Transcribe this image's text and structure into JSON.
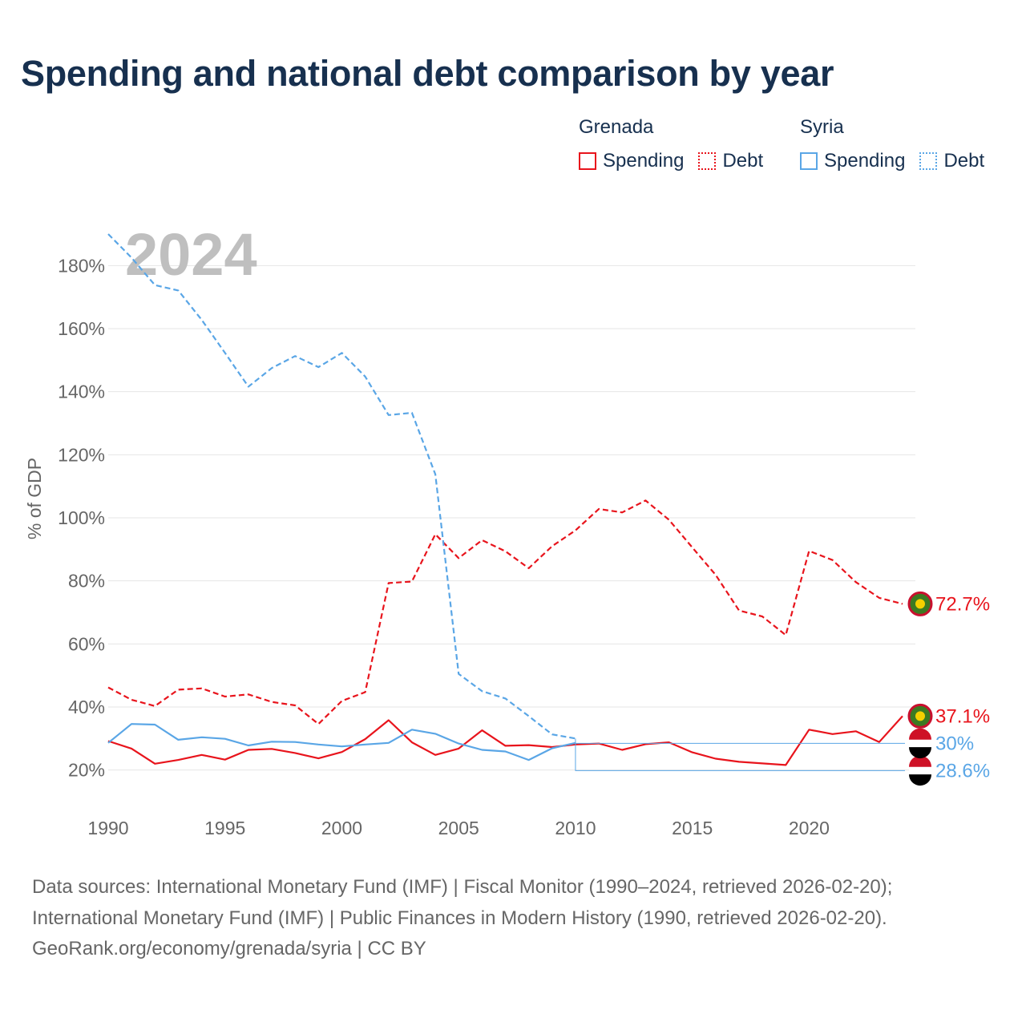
{
  "title": "Spending and national debt comparison by year",
  "legend": {
    "groups": [
      {
        "country": "Grenada",
        "spending_label": "Spending",
        "debt_label": "Debt",
        "color": "#e8141c"
      },
      {
        "country": "Syria",
        "spending_label": "Spending",
        "debt_label": "Debt",
        "color": "#5aa6e6"
      }
    ]
  },
  "colors": {
    "grenada": "#e8141c",
    "syria": "#5aa6e6",
    "grid": "#e6e6e6",
    "axis_text": "#666666",
    "year_watermark": "#bfbfbf"
  },
  "chart_data": {
    "type": "line",
    "year_watermark": "2024",
    "ylabel": "% of GDP",
    "xlabel": "",
    "xlim": [
      1990,
      2024
    ],
    "ylim": [
      10,
      190
    ],
    "x_ticks": [
      1990,
      1995,
      2000,
      2005,
      2010,
      2015,
      2020
    ],
    "y_ticks": [
      20,
      40,
      60,
      80,
      100,
      120,
      140,
      160,
      180
    ],
    "y_tick_labels": [
      "20%",
      "40%",
      "60%",
      "80%",
      "100%",
      "120%",
      "140%",
      "160%",
      "180%"
    ],
    "grid": true,
    "series": [
      {
        "name": "Grenada Spending",
        "country": "Grenada",
        "kind": "spending",
        "style": "solid",
        "color": "#e8141c",
        "x": [
          1990,
          1991,
          1992,
          1993,
          1994,
          1995,
          1996,
          1997,
          1998,
          1999,
          2000,
          2001,
          2002,
          2003,
          2004,
          2005,
          2006,
          2007,
          2008,
          2009,
          2010,
          2011,
          2012,
          2013,
          2014,
          2015,
          2016,
          2017,
          2018,
          2019,
          2020,
          2021,
          2022,
          2023,
          2024
        ],
        "values": [
          29.2,
          26.8,
          22.0,
          23.2,
          24.8,
          23.3,
          26.4,
          26.7,
          25.4,
          23.7,
          25.7,
          29.8,
          35.8,
          28.8,
          24.8,
          26.8,
          32.6,
          27.7,
          27.9,
          27.3,
          28.1,
          28.4,
          26.4,
          28.2,
          28.8,
          25.6,
          23.6,
          22.6,
          22.1,
          21.6,
          32.8,
          31.4,
          32.3,
          28.9,
          37.1
        ],
        "end_label": "37.1%"
      },
      {
        "name": "Grenada Debt",
        "country": "Grenada",
        "kind": "debt",
        "style": "dashed",
        "color": "#e8141c",
        "x": [
          1990,
          1991,
          1992,
          1993,
          1994,
          1995,
          1996,
          1997,
          1998,
          1999,
          2000,
          2001,
          2002,
          2003,
          2004,
          2005,
          2006,
          2007,
          2008,
          2009,
          2010,
          2011,
          2012,
          2013,
          2014,
          2015,
          2016,
          2017,
          2018,
          2019,
          2020,
          2021,
          2022,
          2023,
          2024
        ],
        "values": [
          46.2,
          42.3,
          40.3,
          45.5,
          45.9,
          43.3,
          44.0,
          41.6,
          40.5,
          34.6,
          41.9,
          44.7,
          79.3,
          79.8,
          94.8,
          87.2,
          92.9,
          89.4,
          84.0,
          91.0,
          96.0,
          102.8,
          101.7,
          105.5,
          99.4,
          90.6,
          81.9,
          70.6,
          68.7,
          62.8,
          89.5,
          86.6,
          79.6,
          74.6,
          72.7
        ],
        "end_label": "72.7%"
      },
      {
        "name": "Syria Spending",
        "country": "Syria",
        "kind": "spending",
        "style": "solid",
        "color": "#5aa6e6",
        "x": [
          1990,
          1991,
          1992,
          1993,
          1994,
          1995,
          1996,
          1997,
          1998,
          1999,
          2000,
          2001,
          2002,
          2003,
          2004,
          2005,
          2006,
          2007,
          2008,
          2009,
          2010,
          2024
        ],
        "values": [
          28.6,
          34.6,
          34.4,
          29.6,
          30.4,
          29.9,
          27.8,
          29.0,
          28.9,
          28.1,
          27.5,
          28.1,
          28.6,
          32.8,
          31.5,
          28.4,
          26.4,
          25.9,
          23.2,
          26.9,
          28.6,
          28.6
        ],
        "end_label": "28.6%"
      },
      {
        "name": "Syria Debt",
        "country": "Syria",
        "kind": "debt",
        "style": "dashed",
        "color": "#5aa6e6",
        "x": [
          1990,
          1991,
          1992,
          1993,
          1994,
          1995,
          1996,
          1997,
          1998,
          1999,
          2000,
          2001,
          2002,
          2003,
          2004,
          2005,
          2006,
          2007,
          2008,
          2009,
          2010,
          2024
        ],
        "values": [
          190.0,
          182.5,
          173.8,
          172.1,
          162.8,
          152.3,
          141.6,
          147.5,
          151.3,
          147.8,
          152.3,
          144.8,
          132.6,
          133.3,
          113.8,
          50.5,
          45.0,
          42.7,
          37.1,
          31.3,
          30.0,
          30.0
        ],
        "end_label": "30%"
      }
    ]
  },
  "footer": {
    "line1": "Data sources: International Monetary Fund (IMF) | Fiscal Monitor (1990–2024, retrieved 2026-02-20);",
    "line2": "International Monetary Fund (IMF) | Public Finances in Modern History (1990, retrieved 2026-02-20).",
    "line3": "GeoRank.org/economy/grenada/syria | CC BY"
  }
}
